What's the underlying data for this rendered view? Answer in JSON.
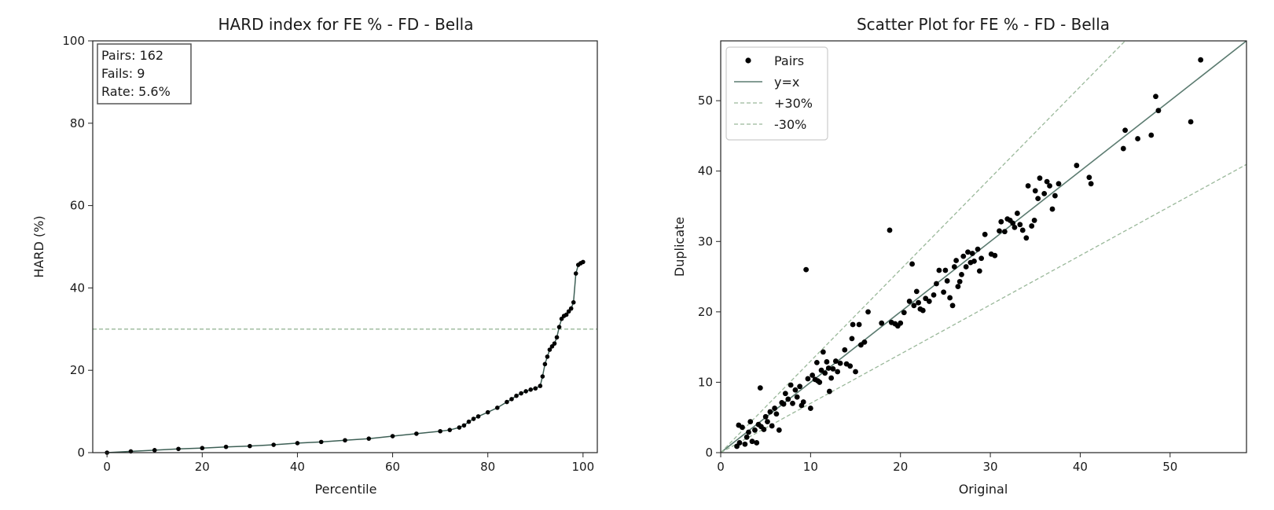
{
  "chart_data": [
    {
      "type": "line",
      "title": "HARD index for FE % - FD - Bella",
      "xlabel": "Percentile",
      "ylabel": "HARD (%)",
      "xlim": [
        -3,
        103
      ],
      "ylim": [
        0,
        100
      ],
      "xticks": [
        "0",
        "20",
        "40",
        "60",
        "80",
        "100"
      ],
      "yticks": [
        "0",
        "20",
        "40",
        "60",
        "80",
        "100"
      ],
      "threshold": 30,
      "stats": {
        "pairs": "Pairs: 162",
        "fails": "Fails: 9",
        "rate": "Rate: 5.6%"
      },
      "series": [
        {
          "x": [
            0,
            5,
            10,
            15,
            20,
            25,
            30,
            35,
            40,
            45,
            50,
            55,
            60,
            65,
            70,
            72,
            74,
            75,
            76,
            77,
            78,
            80,
            82,
            84,
            85,
            86,
            87,
            88,
            89,
            90,
            91,
            91.5,
            92,
            92.5,
            93,
            93.5,
            94,
            94.5,
            95,
            95.5,
            96,
            96.5,
            97,
            97.5,
            98,
            98.5,
            99,
            99.5,
            100
          ],
          "y": [
            0,
            0.3,
            0.6,
            0.9,
            1.1,
            1.4,
            1.6,
            1.9,
            2.3,
            2.6,
            3.0,
            3.4,
            4.0,
            4.6,
            5.2,
            5.5,
            6.1,
            6.6,
            7.5,
            8.2,
            8.8,
            9.8,
            10.9,
            12.3,
            13.0,
            13.8,
            14.4,
            14.9,
            15.3,
            15.6,
            16.2,
            18.5,
            21.5,
            23.3,
            25.0,
            25.8,
            26.5,
            28.0,
            30.5,
            32.5,
            33.2,
            33.5,
            34.3,
            35.0,
            36.5,
            43.5,
            45.6,
            46.0,
            46.3
          ]
        }
      ]
    },
    {
      "type": "scatter",
      "title": "Scatter Plot for FE % - FD - Bella",
      "xlabel": "Original",
      "ylabel": "Duplicate",
      "xlim": [
        0,
        58.5
      ],
      "ylim": [
        0,
        58.5
      ],
      "xticks": [
        "0",
        "10",
        "20",
        "30",
        "40",
        "50"
      ],
      "yticks": [
        "0",
        "10",
        "20",
        "30",
        "40",
        "50"
      ],
      "legend": {
        "position": "upper-left",
        "entries": [
          "Pairs",
          "y=x",
          "+30%",
          "-30%"
        ]
      },
      "series": [
        {
          "name": "Pairs",
          "points": [
            [
              1.8,
              0.9
            ],
            [
              2.0,
              3.9
            ],
            [
              2.1,
              1.4
            ],
            [
              2.4,
              3.6
            ],
            [
              2.7,
              1.2
            ],
            [
              2.9,
              2.2
            ],
            [
              3.1,
              2.9
            ],
            [
              3.3,
              4.4
            ],
            [
              3.5,
              1.6
            ],
            [
              3.8,
              3.2
            ],
            [
              4.0,
              1.4
            ],
            [
              4.2,
              4.0
            ],
            [
              4.4,
              9.2
            ],
            [
              4.5,
              3.7
            ],
            [
              4.8,
              3.3
            ],
            [
              5.0,
              5.1
            ],
            [
              5.2,
              4.4
            ],
            [
              5.5,
              5.8
            ],
            [
              5.7,
              3.8
            ],
            [
              6.0,
              6.3
            ],
            [
              6.2,
              5.5
            ],
            [
              6.5,
              3.2
            ],
            [
              6.8,
              7.1
            ],
            [
              7.0,
              6.9
            ],
            [
              7.2,
              8.4
            ],
            [
              7.5,
              7.6
            ],
            [
              7.8,
              9.6
            ],
            [
              8.0,
              7.0
            ],
            [
              8.3,
              8.9
            ],
            [
              8.5,
              7.9
            ],
            [
              8.8,
              9.4
            ],
            [
              9.0,
              6.7
            ],
            [
              9.2,
              7.2
            ],
            [
              9.5,
              26.0
            ],
            [
              9.7,
              10.5
            ],
            [
              10.0,
              6.3
            ],
            [
              10.2,
              11.0
            ],
            [
              10.5,
              10.4
            ],
            [
              10.7,
              12.8
            ],
            [
              10.8,
              10.2
            ],
            [
              11.0,
              10.0
            ],
            [
              11.2,
              11.7
            ],
            [
              11.4,
              14.3
            ],
            [
              11.6,
              11.3
            ],
            [
              11.8,
              12.9
            ],
            [
              12.0,
              12.0
            ],
            [
              12.1,
              8.7
            ],
            [
              12.3,
              10.6
            ],
            [
              12.5,
              11.9
            ],
            [
              12.8,
              13.0
            ],
            [
              13.0,
              11.5
            ],
            [
              13.3,
              12.7
            ],
            [
              13.8,
              14.6
            ],
            [
              14.0,
              12.6
            ],
            [
              14.4,
              12.3
            ],
            [
              14.6,
              16.2
            ],
            [
              14.7,
              18.2
            ],
            [
              15.0,
              11.5
            ],
            [
              15.4,
              18.2
            ],
            [
              15.6,
              15.3
            ],
            [
              16.0,
              15.7
            ],
            [
              16.4,
              20.0
            ],
            [
              17.9,
              18.4
            ],
            [
              18.8,
              31.6
            ],
            [
              19.0,
              18.5
            ],
            [
              19.4,
              18.3
            ],
            [
              19.7,
              18.0
            ],
            [
              20.0,
              18.4
            ],
            [
              20.4,
              19.9
            ],
            [
              21.0,
              21.5
            ],
            [
              21.3,
              26.8
            ],
            [
              21.5,
              20.9
            ],
            [
              21.8,
              22.9
            ],
            [
              22.0,
              21.3
            ],
            [
              22.2,
              20.4
            ],
            [
              22.5,
              20.2
            ],
            [
              22.8,
              21.9
            ],
            [
              23.2,
              21.5
            ],
            [
              23.7,
              22.4
            ],
            [
              24.0,
              24.0
            ],
            [
              24.3,
              25.9
            ],
            [
              24.8,
              22.8
            ],
            [
              25.0,
              25.9
            ],
            [
              25.2,
              24.4
            ],
            [
              25.5,
              22.0
            ],
            [
              25.8,
              20.9
            ],
            [
              26.0,
              26.4
            ],
            [
              26.2,
              27.3
            ],
            [
              26.4,
              23.6
            ],
            [
              26.6,
              24.3
            ],
            [
              26.8,
              25.3
            ],
            [
              27.0,
              27.9
            ],
            [
              27.3,
              26.4
            ],
            [
              27.5,
              28.5
            ],
            [
              27.8,
              27.0
            ],
            [
              28.0,
              28.3
            ],
            [
              28.2,
              27.2
            ],
            [
              28.6,
              28.9
            ],
            [
              28.8,
              25.8
            ],
            [
              29.0,
              27.6
            ],
            [
              29.4,
              31.0
            ],
            [
              30.1,
              28.2
            ],
            [
              30.5,
              28.0
            ],
            [
              31.0,
              31.5
            ],
            [
              31.2,
              32.8
            ],
            [
              31.6,
              31.4
            ],
            [
              31.9,
              33.2
            ],
            [
              32.2,
              33.0
            ],
            [
              32.5,
              32.6
            ],
            [
              32.7,
              32.0
            ],
            [
              33.0,
              34.0
            ],
            [
              33.3,
              32.4
            ],
            [
              33.6,
              31.6
            ],
            [
              34.0,
              30.5
            ],
            [
              34.2,
              37.9
            ],
            [
              34.6,
              32.2
            ],
            [
              34.9,
              33.0
            ],
            [
              35.0,
              37.2
            ],
            [
              35.3,
              36.1
            ],
            [
              35.5,
              39.0
            ],
            [
              36.0,
              36.8
            ],
            [
              36.3,
              38.5
            ],
            [
              36.6,
              37.9
            ],
            [
              36.9,
              34.6
            ],
            [
              37.2,
              36.5
            ],
            [
              37.6,
              38.2
            ],
            [
              39.6,
              40.8
            ],
            [
              41.0,
              39.1
            ],
            [
              41.2,
              38.2
            ],
            [
              44.8,
              43.2
            ],
            [
              45.0,
              45.8
            ],
            [
              46.4,
              44.6
            ],
            [
              47.9,
              45.1
            ],
            [
              48.4,
              50.6
            ],
            [
              48.7,
              48.6
            ],
            [
              52.3,
              47.0
            ],
            [
              53.4,
              55.8
            ]
          ]
        }
      ]
    }
  ]
}
